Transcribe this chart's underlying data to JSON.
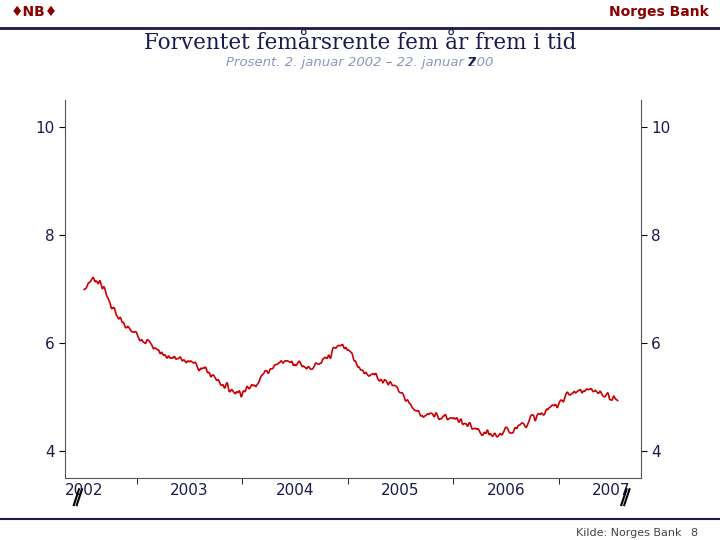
{
  "title": "Forventet femårsrente fem år frem i tid",
  "subtitle_plain": "Prosent. 2. januar 2002 – 22. januar 200",
  "subtitle_bold_end": "7",
  "ylim": [
    3.5,
    10.5
  ],
  "yticks": [
    4,
    6,
    8,
    10
  ],
  "xlabel_years": [
    2002,
    2003,
    2004,
    2005,
    2006,
    2007
  ],
  "line_color": "#cc0000",
  "line_width": 1.2,
  "bg_color": "#ffffff",
  "title_color": "#1a1a4e",
  "subtitle_color": "#8899bb",
  "axis_label_color": "#1a1a4e",
  "header_right_text": "Norges Bank",
  "header_right_color": "#8b0000",
  "footer_text": "Kilde: Norges Bank",
  "footer_number": "8",
  "top_bar_color": "#1a1a4e"
}
